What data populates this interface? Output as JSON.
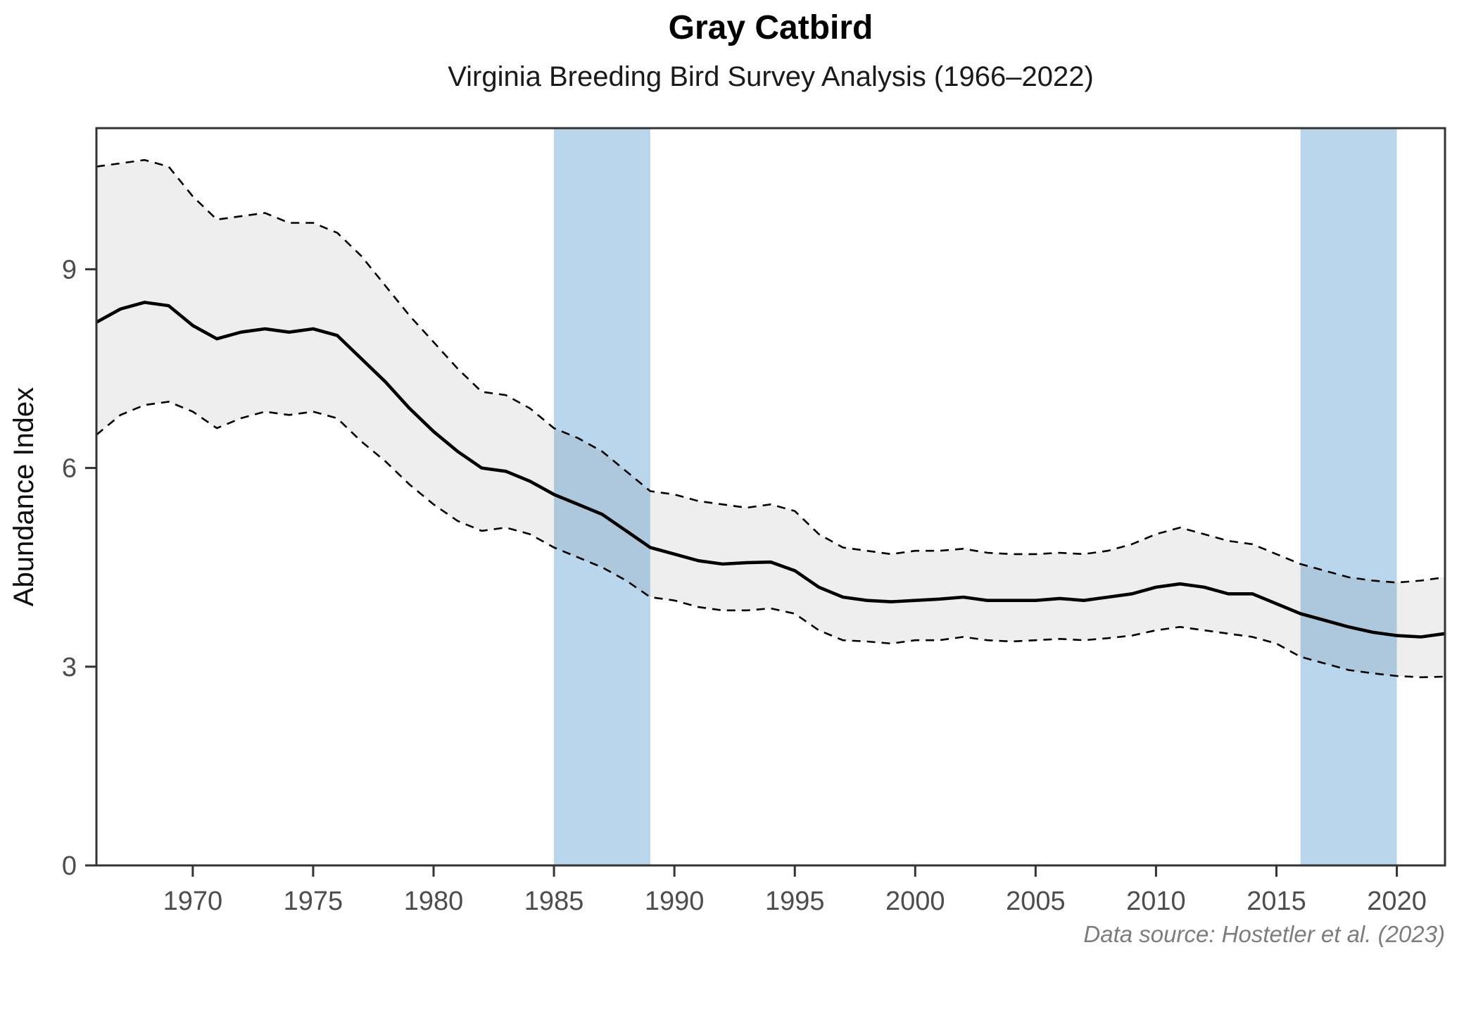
{
  "title": "Gray Catbird",
  "subtitle": "Virginia Breeding Bird Survey Analysis (1966–2022)",
  "caption": "Data source: Hostetler et al. (2023)",
  "colors": {
    "background": "#ffffff",
    "highlight_band": "#bad6ec",
    "ribbon_fill": "rgba(0,0,0,0.065)",
    "trend_line": "#000000",
    "ci_dashed_line": "#000000",
    "panel_border": "#333333",
    "tick_mark": "#333333",
    "tick_label": "#4d4d4d",
    "caption_text": "#7d7d7d"
  },
  "chart_data": {
    "type": "line",
    "title": "Gray Catbird",
    "subtitle": "Virginia Breeding Bird Survey Analysis (1966–2022)",
    "caption": "Data source: Hostetler et al. (2023)",
    "xlabel": "",
    "ylabel": "Abundance Index",
    "xlim": [
      1966,
      2022
    ],
    "ylim": [
      0,
      11.13
    ],
    "x_ticks": [
      1970,
      1975,
      1980,
      1985,
      1990,
      1995,
      2000,
      2005,
      2010,
      2015,
      2020
    ],
    "y_ticks": [
      0,
      3,
      6,
      9
    ],
    "grid": false,
    "legend": false,
    "highlight_bands": [
      {
        "x_from": 1985,
        "x_to": 1989
      },
      {
        "x_from": 2016,
        "x_to": 2020
      }
    ],
    "x": [
      1966,
      1967,
      1968,
      1969,
      1970,
      1971,
      1972,
      1973,
      1974,
      1975,
      1976,
      1977,
      1978,
      1979,
      1980,
      1981,
      1982,
      1983,
      1984,
      1985,
      1986,
      1987,
      1988,
      1989,
      1990,
      1991,
      1992,
      1993,
      1994,
      1995,
      1996,
      1997,
      1998,
      1999,
      2000,
      2001,
      2002,
      2003,
      2004,
      2005,
      2006,
      2007,
      2008,
      2009,
      2010,
      2011,
      2012,
      2013,
      2014,
      2015,
      2016,
      2017,
      2018,
      2019,
      2020,
      2021,
      2022
    ],
    "series": [
      {
        "name": "Abundance index (annual estimate)",
        "style": "solid",
        "values": [
          8.2,
          8.4,
          8.5,
          8.45,
          8.15,
          7.95,
          8.05,
          8.1,
          8.05,
          8.1,
          8.0,
          7.65,
          7.3,
          6.9,
          6.55,
          6.25,
          6.0,
          5.95,
          5.8,
          5.6,
          5.45,
          5.3,
          5.05,
          4.8,
          4.7,
          4.6,
          4.55,
          4.57,
          4.58,
          4.45,
          4.2,
          4.05,
          4.0,
          3.98,
          4.0,
          4.02,
          4.05,
          4.0,
          4.0,
          4.0,
          4.03,
          4.0,
          4.05,
          4.1,
          4.2,
          4.25,
          4.2,
          4.1,
          4.1,
          3.95,
          3.8,
          3.7,
          3.6,
          3.52,
          3.47,
          3.45,
          3.5
        ]
      },
      {
        "name": "Upper 95% CI",
        "style": "dashed",
        "values": [
          10.55,
          10.6,
          10.65,
          10.55,
          10.1,
          9.75,
          9.8,
          9.85,
          9.7,
          9.7,
          9.55,
          9.2,
          8.75,
          8.3,
          7.9,
          7.5,
          7.15,
          7.1,
          6.9,
          6.6,
          6.45,
          6.25,
          5.95,
          5.65,
          5.6,
          5.5,
          5.45,
          5.4,
          5.45,
          5.35,
          5.0,
          4.8,
          4.75,
          4.7,
          4.75,
          4.75,
          4.78,
          4.72,
          4.7,
          4.7,
          4.72,
          4.7,
          4.75,
          4.85,
          5.0,
          5.1,
          5.0,
          4.9,
          4.85,
          4.7,
          4.55,
          4.45,
          4.35,
          4.3,
          4.27,
          4.3,
          4.35
        ]
      },
      {
        "name": "Lower 95% CI",
        "style": "dashed",
        "values": [
          6.5,
          6.8,
          6.95,
          7.0,
          6.85,
          6.6,
          6.75,
          6.85,
          6.8,
          6.85,
          6.75,
          6.4,
          6.1,
          5.75,
          5.45,
          5.2,
          5.05,
          5.1,
          5.0,
          4.8,
          4.65,
          4.5,
          4.3,
          4.05,
          4.0,
          3.9,
          3.85,
          3.85,
          3.88,
          3.8,
          3.55,
          3.4,
          3.38,
          3.35,
          3.4,
          3.4,
          3.45,
          3.4,
          3.38,
          3.4,
          3.42,
          3.4,
          3.43,
          3.47,
          3.55,
          3.6,
          3.55,
          3.5,
          3.45,
          3.35,
          3.15,
          3.05,
          2.95,
          2.9,
          2.86,
          2.84,
          2.85
        ]
      }
    ],
    "ribbon": {
      "upper_series": "Upper 95% CI",
      "lower_series": "Lower 95% CI"
    }
  }
}
